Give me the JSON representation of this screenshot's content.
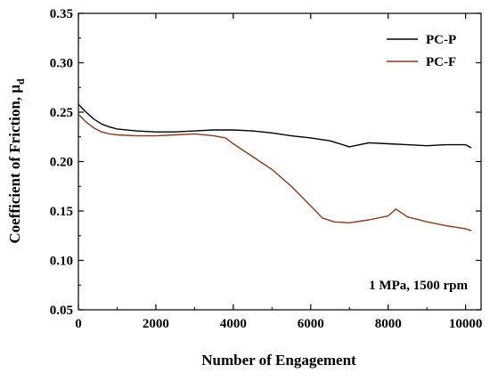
{
  "chart_data": {
    "type": "line",
    "xlabel": "Number of Engagement",
    "ylabel": "Coefficient of Friction, μ",
    "ylabel_subscript": "d",
    "xlim": [
      0,
      10400
    ],
    "ylim": [
      0.05,
      0.35
    ],
    "xticks": [
      0,
      2000,
      4000,
      6000,
      8000,
      10000
    ],
    "yticks": [
      0.05,
      0.1,
      0.15,
      0.2,
      0.25,
      0.3,
      0.35
    ],
    "ytick_labels": [
      "0.05",
      "0.10",
      "0.15",
      "0.20",
      "0.25",
      "0.30",
      "0.35"
    ],
    "grid": false,
    "legend_position": "top-right",
    "annotation": "1 MPa, 1500 rpm",
    "series": [
      {
        "name": "PC-P",
        "color": "#000000",
        "x": [
          0,
          200,
          400,
          600,
          800,
          1000,
          1500,
          2000,
          2500,
          3000,
          3500,
          4000,
          4500,
          5000,
          5500,
          6000,
          6500,
          7000,
          7500,
          8000,
          8500,
          9000,
          9500,
          10000,
          10150
        ],
        "y": [
          0.258,
          0.25,
          0.243,
          0.238,
          0.235,
          0.233,
          0.231,
          0.23,
          0.23,
          0.231,
          0.232,
          0.232,
          0.231,
          0.229,
          0.226,
          0.224,
          0.221,
          0.215,
          0.219,
          0.218,
          0.217,
          0.216,
          0.217,
          0.217,
          0.214
        ]
      },
      {
        "name": "PC-F",
        "color": "#8B3A1A",
        "x": [
          0,
          200,
          400,
          600,
          800,
          1000,
          1500,
          2000,
          2500,
          3000,
          3500,
          3800,
          4000,
          4500,
          5000,
          5500,
          6000,
          6300,
          6600,
          7000,
          7500,
          8000,
          8200,
          8500,
          9000,
          9500,
          10000,
          10150
        ],
        "y": [
          0.248,
          0.24,
          0.234,
          0.23,
          0.228,
          0.227,
          0.226,
          0.226,
          0.227,
          0.228,
          0.226,
          0.224,
          0.218,
          0.205,
          0.192,
          0.175,
          0.155,
          0.143,
          0.139,
          0.138,
          0.141,
          0.145,
          0.152,
          0.144,
          0.139,
          0.135,
          0.132,
          0.13
        ]
      }
    ]
  }
}
